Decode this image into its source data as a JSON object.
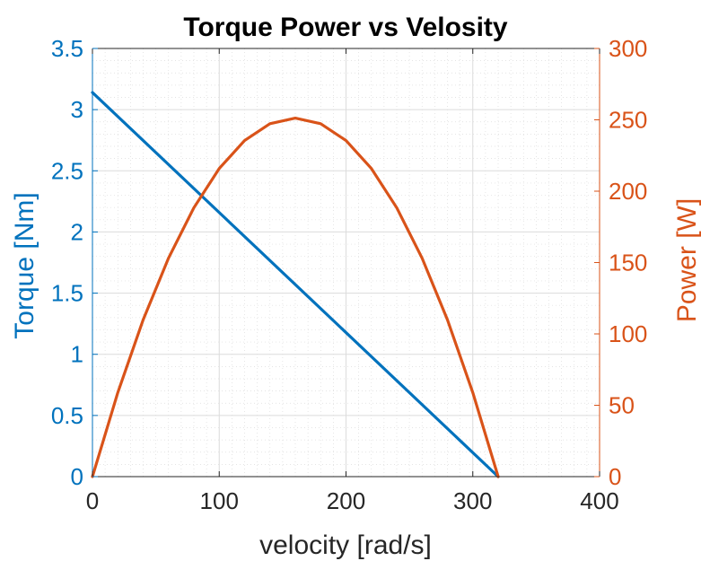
{
  "chart_data": {
    "type": "line",
    "title": "Torque Power vs Velosity",
    "xlabel": "velocity [rad/s]",
    "xlim": [
      0,
      400
    ],
    "x_ticks": [
      "0",
      "100",
      "200",
      "300",
      "400"
    ],
    "y_left": {
      "label": "Torque [Nm]",
      "lim": [
        0,
        3.5
      ],
      "ticks": [
        "0",
        "0.5",
        "1",
        "1.5",
        "2",
        "2.5",
        "3",
        "3.5"
      ],
      "color": "#0072BD"
    },
    "y_right": {
      "label": "Power [W]",
      "lim": [
        0,
        300
      ],
      "ticks": [
        "0",
        "50",
        "100",
        "150",
        "200",
        "250",
        "300"
      ],
      "color": "#D95319"
    },
    "grid": "on (major and minor)",
    "series": [
      {
        "axis": "left",
        "color": "#0072BD",
        "x": [
          0,
          320
        ],
        "y": [
          3.14,
          0
        ]
      },
      {
        "axis": "right",
        "color": "#D95319",
        "x": [
          0,
          20,
          40,
          60,
          80,
          100,
          120,
          140,
          160,
          180,
          200,
          220,
          240,
          260,
          280,
          300,
          320
        ],
        "y": [
          0,
          58.9,
          109.9,
          153.1,
          188.4,
          215.9,
          235.5,
          247.3,
          251.2,
          247.3,
          235.5,
          215.9,
          188.4,
          153.1,
          109.9,
          58.9,
          0
        ]
      }
    ]
  }
}
